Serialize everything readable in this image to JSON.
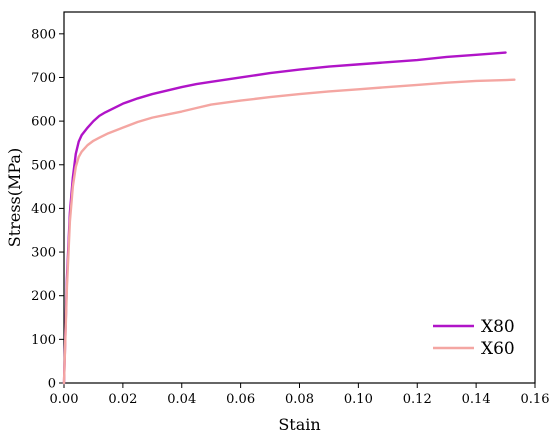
{
  "chart_data": {
    "type": "line",
    "title": "",
    "xlabel": "Stain",
    "ylabel": "Stress(MPa)",
    "xlim": [
      0,
      0.16
    ],
    "ylim": [
      0,
      850
    ],
    "xticks": [
      0,
      0.02,
      0.04,
      0.06,
      0.08,
      0.1,
      0.12,
      0.14,
      0.16
    ],
    "xtick_labels": [
      "0.00",
      "0.02",
      "0.04",
      "0.06",
      "0.08",
      "0.10",
      "0.12",
      "0.14",
      "0.16"
    ],
    "yticks": [
      0,
      100,
      200,
      300,
      400,
      500,
      600,
      700,
      800
    ],
    "ytick_labels": [
      "0",
      "100",
      "200",
      "300",
      "400",
      "500",
      "600",
      "700",
      "800"
    ],
    "grid": false,
    "legend_position": "bottom-right",
    "series": [
      {
        "name": "X80",
        "color": "#b014c8",
        "x": [
          0,
          0.001,
          0.002,
          0.003,
          0.004,
          0.005,
          0.006,
          0.008,
          0.01,
          0.012,
          0.014,
          0.017,
          0.02,
          0.025,
          0.03,
          0.035,
          0.04,
          0.045,
          0.05,
          0.06,
          0.07,
          0.08,
          0.09,
          0.1,
          0.11,
          0.12,
          0.13,
          0.14,
          0.15
        ],
        "y": [
          0,
          240,
          390,
          470,
          525,
          553,
          568,
          585,
          600,
          612,
          620,
          630,
          640,
          652,
          662,
          670,
          678,
          685,
          690,
          700,
          710,
          718,
          725,
          730,
          735,
          740,
          747,
          752,
          757
        ]
      },
      {
        "name": "X60",
        "color": "#f4a6a2",
        "x": [
          0,
          0.001,
          0.002,
          0.003,
          0.004,
          0.005,
          0.006,
          0.008,
          0.01,
          0.012,
          0.015,
          0.02,
          0.025,
          0.03,
          0.035,
          0.04,
          0.045,
          0.05,
          0.06,
          0.07,
          0.08,
          0.09,
          0.1,
          0.11,
          0.12,
          0.13,
          0.14,
          0.15,
          0.153
        ],
        "y": [
          0,
          220,
          370,
          450,
          495,
          518,
          530,
          545,
          555,
          562,
          572,
          585,
          598,
          608,
          615,
          622,
          630,
          638,
          647,
          655,
          662,
          668,
          673,
          678,
          683,
          688,
          692,
          694,
          695
        ]
      }
    ]
  }
}
